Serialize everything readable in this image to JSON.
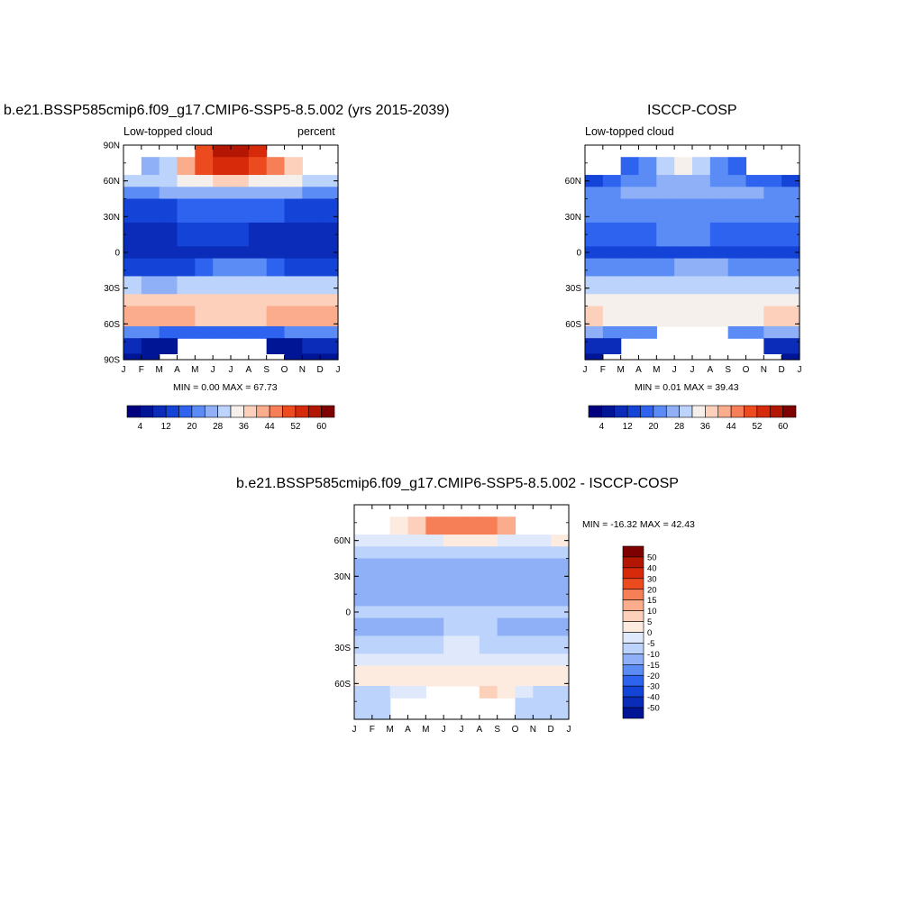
{
  "panel1": {
    "title": "b.e21.BSSP585cmip6.f09_g17.CMIP6-SSP5-8.5.002 (yrs 2015-2039)",
    "left_string": "Low-topped cloud",
    "right_string": "percent",
    "stats": "MIN =   0.00 MAX =  67.73"
  },
  "panel2": {
    "title": "ISCCP-COSP",
    "left_string": "Low-topped cloud",
    "stats": "MIN =   0.01 MAX =  39.43"
  },
  "panel3": {
    "title": "b.e21.BSSP585cmip6.f09_g17.CMIP6-SSP5-8.5.002 - ISCCP-COSP",
    "stats": "MIN = -16.32 MAX =  42.43"
  },
  "chart_data": [
    {
      "type": "heatmap",
      "name": "model",
      "x_tick_labels": [
        "J",
        "F",
        "M",
        "A",
        "M",
        "J",
        "J",
        "A",
        "S",
        "O",
        "N",
        "D",
        "J"
      ],
      "y_tick_labels": [
        "90N",
        "60N",
        "30N",
        "0",
        "30S",
        "60S",
        "90S"
      ],
      "y_ticks": [
        90,
        60,
        30,
        0,
        -30,
        -60,
        -90
      ],
      "ylim": [
        -90,
        90
      ],
      "months": [
        1,
        2,
        3,
        4,
        5,
        6,
        7,
        8,
        9,
        10,
        11,
        12
      ],
      "lat_bands": [
        [
          80,
          90
        ],
        [
          65,
          80
        ],
        [
          55,
          65
        ],
        [
          45,
          55
        ],
        [
          25,
          45
        ],
        [
          5,
          25
        ],
        [
          -5,
          5
        ],
        [
          -20,
          -5
        ],
        [
          -35,
          -20
        ],
        [
          -45,
          -35
        ],
        [
          -62,
          -45
        ],
        [
          -72,
          -62
        ],
        [
          -85,
          -72
        ],
        [
          -90,
          -85
        ]
      ],
      "values": [
        [
          null,
          null,
          null,
          null,
          48,
          56,
          58,
          55,
          null,
          null,
          null,
          null
        ],
        [
          null,
          24,
          28,
          40,
          48,
          52,
          52,
          50,
          44,
          36,
          null,
          null
        ],
        [
          30,
          30,
          31,
          32,
          34,
          36,
          36,
          35,
          33,
          32,
          31,
          30
        ],
        [
          22,
          22,
          24,
          25,
          26,
          27,
          27,
          26,
          25,
          24,
          23,
          22
        ],
        [
          14,
          15,
          15,
          16,
          17,
          18,
          18,
          17,
          16,
          15,
          15,
          14
        ],
        [
          10,
          11,
          11,
          12,
          12,
          13,
          12,
          11,
          11,
          10,
          10,
          10
        ],
        [
          8,
          8,
          9,
          9,
          9,
          10,
          9,
          8,
          8,
          8,
          8,
          8
        ],
        [
          13,
          13,
          14,
          15,
          18,
          21,
          22,
          20,
          16,
          14,
          13,
          13
        ],
        [
          28,
          27,
          27,
          28,
          30,
          31,
          31,
          30,
          29,
          29,
          28,
          28
        ],
        [
          38,
          37,
          36,
          36,
          37,
          38,
          38,
          37,
          36,
          37,
          38,
          38
        ],
        [
          42,
          41,
          40,
          40,
          39,
          38,
          38,
          39,
          40,
          41,
          42,
          42
        ],
        [
          22,
          20,
          18,
          18,
          18,
          18,
          18,
          18,
          18,
          20,
          22,
          22
        ],
        [
          8,
          7,
          6,
          null,
          null,
          null,
          null,
          null,
          6,
          7,
          8,
          8
        ],
        [
          4,
          4,
          null,
          null,
          null,
          null,
          null,
          null,
          null,
          4,
          4,
          4
        ]
      ],
      "colorbar_labels": [
        "4",
        "12",
        "20",
        "28",
        "36",
        "44",
        "52",
        "60"
      ]
    },
    {
      "type": "heatmap",
      "name": "obs",
      "x_tick_labels": [
        "J",
        "F",
        "M",
        "A",
        "M",
        "J",
        "J",
        "A",
        "S",
        "O",
        "N",
        "D",
        "J"
      ],
      "y_tick_labels": [
        "60N",
        "30N",
        "0",
        "30S",
        "60S"
      ],
      "y_ticks": [
        60,
        30,
        0,
        -30,
        -60
      ],
      "ylim": [
        -90,
        90
      ],
      "months": [
        1,
        2,
        3,
        4,
        5,
        6,
        7,
        8,
        9,
        10,
        11,
        12
      ],
      "lat_bands": [
        [
          80,
          90
        ],
        [
          65,
          80
        ],
        [
          55,
          65
        ],
        [
          45,
          55
        ],
        [
          25,
          45
        ],
        [
          5,
          25
        ],
        [
          -5,
          5
        ],
        [
          -20,
          -5
        ],
        [
          -35,
          -20
        ],
        [
          -45,
          -35
        ],
        [
          -62,
          -45
        ],
        [
          -72,
          -62
        ],
        [
          -85,
          -72
        ],
        [
          -90,
          -85
        ]
      ],
      "values": [
        [
          null,
          null,
          null,
          null,
          null,
          null,
          null,
          null,
          null,
          null,
          null,
          null
        ],
        [
          null,
          null,
          16,
          20,
          30,
          34,
          28,
          22,
          18,
          null,
          null,
          null
        ],
        [
          14,
          16,
          20,
          22,
          24,
          24,
          24,
          22,
          20,
          18,
          16,
          14
        ],
        [
          22,
          22,
          24,
          25,
          26,
          26,
          26,
          26,
          25,
          24,
          23,
          22
        ],
        [
          21,
          21,
          22,
          22,
          23,
          23,
          23,
          22,
          22,
          22,
          21,
          21
        ],
        [
          18,
          18,
          19,
          19,
          20,
          20,
          20,
          19,
          19,
          19,
          18,
          18
        ],
        [
          12,
          12,
          12,
          13,
          13,
          14,
          14,
          13,
          13,
          12,
          12,
          12
        ],
        [
          20,
          20,
          21,
          22,
          23,
          24,
          25,
          24,
          22,
          21,
          20,
          20
        ],
        [
          28,
          28,
          28,
          29,
          30,
          30,
          30,
          30,
          29,
          29,
          28,
          28
        ],
        [
          34,
          34,
          33,
          33,
          33,
          33,
          33,
          33,
          33,
          34,
          34,
          34
        ],
        [
          36,
          35,
          34,
          33,
          33,
          32,
          32,
          33,
          34,
          35,
          36,
          36
        ],
        [
          24,
          22,
          20,
          20,
          null,
          null,
          null,
          null,
          20,
          22,
          24,
          24
        ],
        [
          8,
          8,
          null,
          null,
          null,
          null,
          null,
          null,
          null,
          null,
          8,
          8
        ],
        [
          4,
          null,
          null,
          null,
          null,
          null,
          null,
          null,
          null,
          null,
          null,
          4
        ]
      ],
      "colorbar_labels": [
        "4",
        "12",
        "20",
        "28",
        "36",
        "44",
        "52",
        "60"
      ]
    },
    {
      "type": "heatmap",
      "name": "difference",
      "x_tick_labels": [
        "J",
        "F",
        "M",
        "A",
        "M",
        "J",
        "J",
        "A",
        "S",
        "O",
        "N",
        "D",
        "J"
      ],
      "y_tick_labels": [
        "60N",
        "30N",
        "0",
        "30S",
        "60S"
      ],
      "y_ticks": [
        60,
        30,
        0,
        -30,
        -60
      ],
      "ylim": [
        -90,
        90
      ],
      "months": [
        1,
        2,
        3,
        4,
        5,
        6,
        7,
        8,
        9,
        10,
        11,
        12
      ],
      "lat_bands": [
        [
          80,
          90
        ],
        [
          65,
          80
        ],
        [
          55,
          65
        ],
        [
          45,
          55
        ],
        [
          25,
          45
        ],
        [
          5,
          25
        ],
        [
          -5,
          5
        ],
        [
          -20,
          -5
        ],
        [
          -35,
          -20
        ],
        [
          -45,
          -35
        ],
        [
          -62,
          -45
        ],
        [
          -72,
          -62
        ],
        [
          -85,
          -72
        ],
        [
          -90,
          -85
        ]
      ],
      "values": [
        [
          null,
          null,
          null,
          null,
          null,
          null,
          null,
          null,
          null,
          null,
          null,
          null
        ],
        [
          null,
          null,
          6,
          14,
          22,
          26,
          28,
          26,
          16,
          null,
          null,
          null
        ],
        [
          4,
          2,
          0,
          2,
          4,
          6,
          6,
          5,
          4,
          3,
          4,
          5
        ],
        [
          -1,
          -2,
          -3,
          -3,
          -3,
          -2,
          -2,
          -3,
          -3,
          -2,
          -2,
          -1
        ],
        [
          -7,
          -7,
          -8,
          -8,
          -8,
          -7,
          -7,
          -7,
          -7,
          -7,
          -7,
          -7
        ],
        [
          -9,
          -8,
          -9,
          -9,
          -9,
          -9,
          -9,
          -9,
          -9,
          -9,
          -9,
          -9
        ],
        [
          -5,
          -5,
          -5,
          -5,
          -4,
          -4,
          -5,
          -5,
          -5,
          -5,
          -5,
          -5
        ],
        [
          -8,
          -8,
          -8,
          -8,
          -7,
          -5,
          -4,
          -5,
          -7,
          -8,
          -8,
          -8
        ],
        [
          -1,
          -1,
          -1,
          -1,
          -1,
          0,
          0,
          -1,
          -1,
          -1,
          -1,
          -1
        ],
        [
          4,
          4,
          3,
          3,
          3,
          4,
          4,
          3,
          3,
          3,
          4,
          4
        ],
        [
          5,
          5,
          5,
          6,
          6,
          6,
          6,
          7,
          6,
          5,
          5,
          5
        ],
        [
          -4,
          -3,
          2,
          2,
          null,
          null,
          null,
          10,
          6,
          2,
          -2,
          -4
        ],
        [
          -2,
          -2,
          null,
          null,
          null,
          null,
          null,
          null,
          null,
          -2,
          -2,
          -2
        ],
        [
          -3,
          -3,
          null,
          null,
          null,
          null,
          null,
          null,
          null,
          -2,
          -2,
          -3
        ]
      ],
      "colorbar_labels": [
        "50",
        "40",
        "30",
        "20",
        "15",
        "10",
        "5",
        "0",
        "-5",
        "-10",
        "-15",
        "-20",
        "-30",
        "-40",
        "-50"
      ]
    }
  ],
  "colors": {
    "map_seq": [
      "#00007f",
      "#001496",
      "#0a2cb8",
      "#1443d8",
      "#2e63f0",
      "#5b8bf5",
      "#8fb0f7",
      "#bcd3fb",
      "#f5f0ec",
      "#fdd0bb",
      "#fbac8c",
      "#f77f57",
      "#ec4a1f",
      "#d62a0b",
      "#b31704",
      "#7f0000"
    ],
    "map_div": [
      "#00007f",
      "#001496",
      "#0a2cb8",
      "#1443d8",
      "#2e63f0",
      "#5b8bf5",
      "#8fb0f7",
      "#bcd3fb",
      "#dfe9fb",
      "#fdebe0",
      "#fdd0bb",
      "#fbac8c",
      "#f77f57",
      "#ec4a1f",
      "#d62a0b",
      "#b31704",
      "#7f0000"
    ]
  }
}
